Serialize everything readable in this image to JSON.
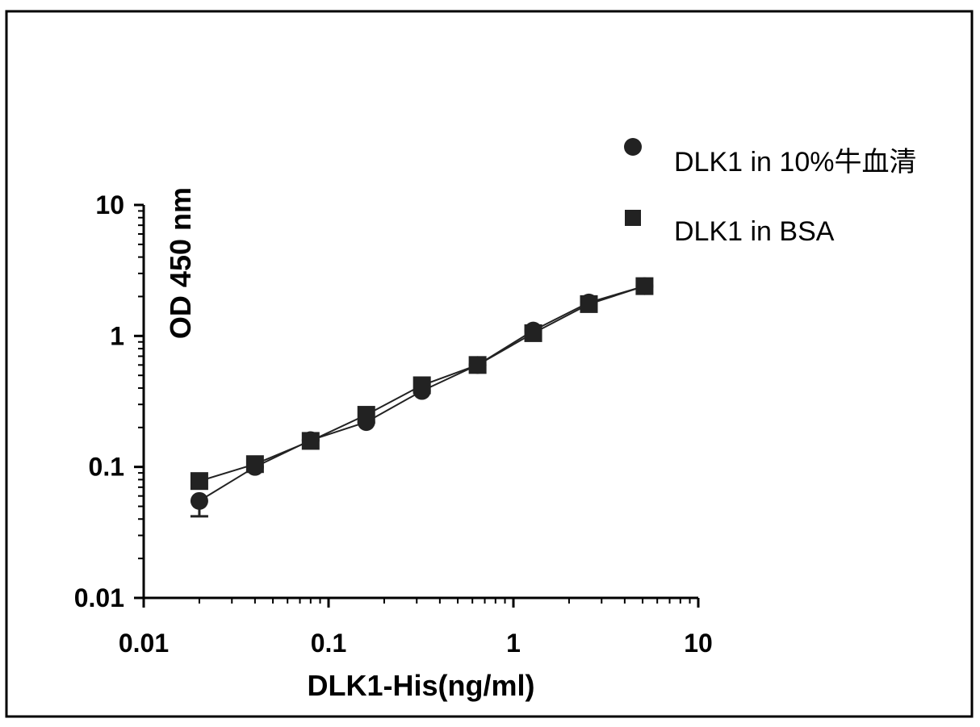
{
  "colors": {
    "series": "#222222",
    "background": "#ffffff"
  },
  "chart_data": {
    "type": "scatter",
    "title": "",
    "xlabel": "DLK1-His(ng/ml)",
    "ylabel": "OD 450 nm",
    "xscale": "log",
    "yscale": "log",
    "xlim": [
      0.01,
      10
    ],
    "ylim": [
      0.01,
      10
    ],
    "xticks": [
      "0.01",
      "0.1",
      "1",
      "10"
    ],
    "yticks": [
      "0.01",
      "0.1",
      "1",
      "10"
    ],
    "grid": false,
    "legend_position": "top-right",
    "x": [
      0.02,
      0.04,
      0.08,
      0.16,
      0.32,
      0.64,
      1.28,
      2.56,
      5.12
    ],
    "series": [
      {
        "name": "DLK1 in 10%牛血清",
        "marker": "circle",
        "values": [
          0.055,
          0.1,
          0.16,
          0.22,
          0.38,
          0.6,
          1.1,
          1.8,
          2.4
        ],
        "error_low": [
          0.042,
          null,
          null,
          null,
          null,
          null,
          null,
          null,
          null
        ]
      },
      {
        "name": "DLK1 in BSA",
        "marker": "square",
        "values": [
          0.078,
          0.105,
          0.158,
          0.25,
          0.42,
          0.6,
          1.05,
          1.75,
          2.4
        ],
        "error_low": [
          null,
          null,
          null,
          null,
          null,
          null,
          null,
          null,
          null
        ]
      }
    ]
  }
}
